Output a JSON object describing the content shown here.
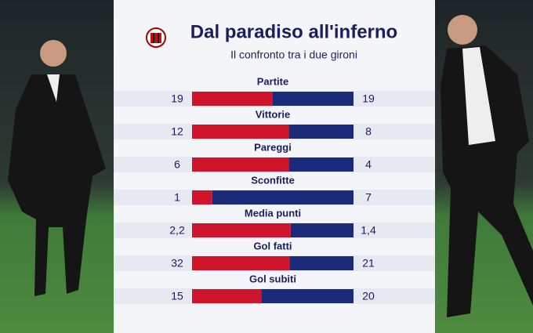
{
  "chart_data": {
    "type": "split-bar",
    "title": "Dal paradiso all'inferno",
    "subtitle": "Il confronto tra i due gironi",
    "categories": [
      "Partite",
      "Vittorie",
      "Pareggi",
      "Sconfitte",
      "Media punti",
      "Gol fatti",
      "Gol subiti"
    ],
    "series": [
      {
        "color": "#d0142c",
        "values": [
          19,
          12,
          6,
          1,
          2.2,
          32,
          15
        ],
        "value_labels": [
          "19",
          "12",
          "6",
          "1",
          "2,2",
          "32",
          "15"
        ]
      },
      {
        "color": "#1c2a7a",
        "values": [
          19,
          8,
          4,
          7,
          1.4,
          21,
          20
        ],
        "value_labels": [
          "19",
          "8",
          "4",
          "7",
          "1,4",
          "21",
          "20"
        ]
      }
    ]
  }
}
